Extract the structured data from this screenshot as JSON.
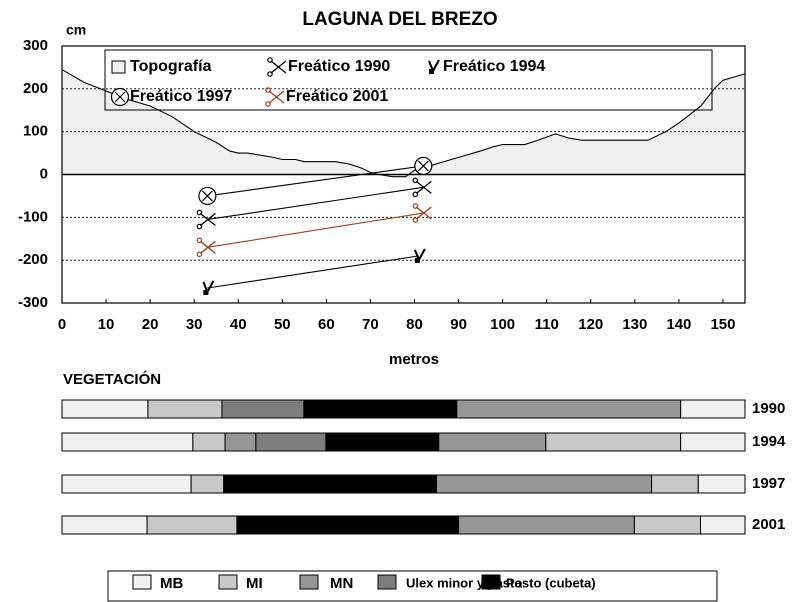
{
  "chart_data": [
    {
      "type": "line",
      "title": "LAGUNA DEL BREZO",
      "y_label": "cm",
      "x_label": "metros",
      "xlim": [
        0,
        155
      ],
      "ylim": [
        -300,
        300
      ],
      "xticks": [
        0,
        10,
        20,
        30,
        40,
        50,
        60,
        70,
        80,
        90,
        100,
        110,
        120,
        130,
        140,
        150
      ],
      "yticks": [
        -300,
        -200,
        -100,
        0,
        100,
        200,
        300
      ],
      "grid": true,
      "legend": "top",
      "series": [
        {
          "name": "Topografía",
          "color": "#f0f0f0",
          "fill": true,
          "x": [
            0,
            5,
            10,
            15,
            20,
            25,
            30,
            35,
            38,
            40,
            42,
            45,
            48,
            50,
            53,
            55,
            58,
            60,
            62,
            65,
            68,
            70,
            72,
            75,
            78,
            80,
            82,
            85,
            90,
            95,
            98,
            100,
            105,
            108,
            112,
            115,
            118,
            125,
            130,
            133,
            137,
            140,
            145,
            148,
            150,
            155
          ],
          "values": [
            245,
            215,
            195,
            175,
            160,
            135,
            100,
            75,
            55,
            50,
            50,
            45,
            40,
            35,
            35,
            30,
            30,
            30,
            30,
            25,
            15,
            5,
            0,
            -5,
            -5,
            10,
            15,
            25,
            40,
            55,
            65,
            70,
            70,
            80,
            95,
            85,
            80,
            80,
            80,
            80,
            100,
            120,
            160,
            200,
            220,
            235
          ]
        },
        {
          "name": "Freático 1990",
          "color": "#000000",
          "marker": "scissors",
          "x": [
            33,
            82
          ],
          "values": [
            -105,
            -30
          ]
        },
        {
          "name": "Freático 1994",
          "color": "#000000",
          "marker": "check",
          "x": [
            33,
            81
          ],
          "values": [
            -265,
            -190
          ]
        },
        {
          "name": "Freático 1997",
          "color": "#000000",
          "marker": "circle-x",
          "x": [
            33,
            82
          ],
          "values": [
            -50,
            20
          ]
        },
        {
          "name": "Freático 2001",
          "color": "#a0401f",
          "marker": "scissors",
          "x": [
            33,
            82
          ],
          "values": [
            -170,
            -90
          ]
        }
      ]
    },
    {
      "type": "segment_bar",
      "title": "VEGETACIÓN",
      "xlim": [
        0,
        155
      ],
      "classes": [
        {
          "name": "MB",
          "color": "#f0f0f0"
        },
        {
          "name": "MI",
          "color": "#c8c8c8"
        },
        {
          "name": "MN",
          "color": "#969696"
        },
        {
          "name": "Ulex minor y pasto",
          "color": "#7d7d7d"
        },
        {
          "name": "Pasto (cubeta)",
          "color": "#000000"
        }
      ],
      "rows": [
        {
          "name": "1990",
          "segments": [
            {
              "class": "MB",
              "length": 19.5
            },
            {
              "class": "MI",
              "length": 16.8
            },
            {
              "class": "Ulex minor y pasto",
              "length": 18.6
            },
            {
              "class": "Pasto (cubeta)",
              "length": 34.7
            },
            {
              "class": "MN",
              "length": 50.8
            },
            {
              "class": "MB",
              "length": 14.6
            }
          ]
        },
        {
          "name": "1994",
          "segments": [
            {
              "class": "MB",
              "length": 29.7
            },
            {
              "class": "MI",
              "length": 7.3
            },
            {
              "class": "MN",
              "length": 7.0
            },
            {
              "class": "Ulex minor y pasto",
              "length": 15.9
            },
            {
              "class": "Pasto (cubeta)",
              "length": 25.6
            },
            {
              "class": "MN",
              "length": 24.3
            },
            {
              "class": "MI",
              "length": 30.6
            },
            {
              "class": "MB",
              "length": 14.6
            }
          ]
        },
        {
          "name": "1997",
          "segments": [
            {
              "class": "MB",
              "length": 29.3
            },
            {
              "class": "MI",
              "length": 7.4
            },
            {
              "class": "Pasto (cubeta)",
              "length": 48.3
            },
            {
              "class": "MN",
              "length": 48.8
            },
            {
              "class": "MI",
              "length": 10.6
            },
            {
              "class": "MB",
              "length": 10.6
            }
          ]
        },
        {
          "name": "2001",
          "segments": [
            {
              "class": "MB",
              "length": 19.3
            },
            {
              "class": "MI",
              "length": 20.4
            },
            {
              "class": "Pasto (cubeta)",
              "length": 50.3
            },
            {
              "class": "MN",
              "length": 39.9
            },
            {
              "class": "MI",
              "length": 15.0
            },
            {
              "class": "MB",
              "length": 10.1
            }
          ]
        }
      ]
    }
  ]
}
